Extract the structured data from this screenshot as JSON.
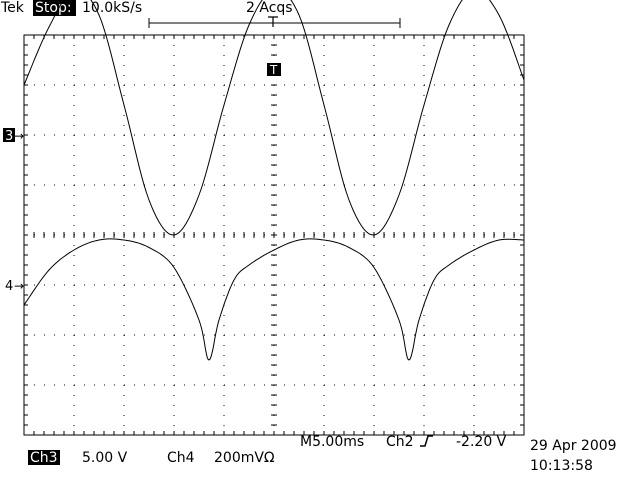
{
  "header": {
    "brand": "Tek",
    "run_state": "Stop:",
    "sample_rate": "10.0kS/s",
    "acquisitions": "2 Acqs",
    "trigger_marker": "T"
  },
  "channels": [
    {
      "marker": "3",
      "arrow": "→"
    },
    {
      "marker": "4",
      "arrow": "→"
    }
  ],
  "footer": {
    "ch3_label": "Ch3",
    "ch3_scale": "5.00 V",
    "ch4_label": "Ch4",
    "ch4_scale": "200mVΩ",
    "timebase": "M5.00ms",
    "trigger_source": "Ch2",
    "trigger_slope_icon": "rising-edge-icon",
    "trigger_level": "-2.20 V",
    "date": "29 Apr 2009",
    "time": "10:13:58"
  },
  "chart_data": {
    "type": "line",
    "x": {
      "unit": "ms",
      "divisions": 10,
      "per_div": 5.0,
      "range": [
        0,
        50
      ]
    },
    "series": [
      {
        "channel": "3",
        "volts_per_div": 5.0,
        "x": [
          0,
          2.5,
          5,
          7.5,
          10,
          12.5,
          15,
          17.5,
          20,
          22.5,
          25,
          27.5,
          30,
          32.5,
          35,
          37.5,
          40,
          42.5,
          45,
          47.5,
          50
        ],
        "y": [
          5.0,
          10.8,
          14.5,
          12.0,
          3.0,
          -6.5,
          -10.0,
          -6.0,
          3.0,
          11.0,
          14.5,
          12.0,
          3.0,
          -6.5,
          -10.0,
          -6.0,
          3.0,
          11.0,
          14.5,
          12.0,
          5.5
        ]
      },
      {
        "channel": "4",
        "volts_per_div": 0.2,
        "x": [
          0,
          2.5,
          5,
          7.5,
          10,
          12.5,
          15,
          17.5,
          18.5,
          19.5,
          21,
          22.5,
          25,
          27.5,
          30,
          32.5,
          35,
          37.5,
          38.5,
          39.5,
          41,
          42.5,
          45,
          47.5,
          50
        ],
        "y": [
          -0.08,
          0.06,
          0.14,
          0.18,
          0.18,
          0.15,
          0.07,
          -0.14,
          -0.3,
          -0.14,
          0.02,
          0.08,
          0.14,
          0.18,
          0.18,
          0.15,
          0.07,
          -0.14,
          -0.3,
          -0.14,
          0.02,
          0.08,
          0.14,
          0.18,
          0.18
        ]
      }
    ]
  }
}
